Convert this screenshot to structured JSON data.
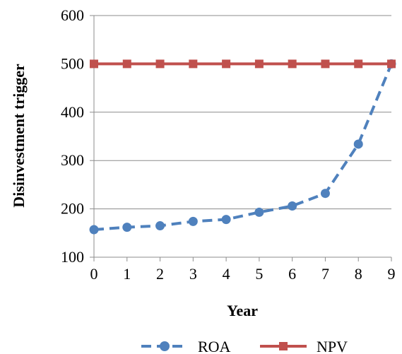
{
  "chart_data": {
    "type": "line",
    "title": "",
    "xlabel": "Year",
    "ylabel": "Disinvestment trigger",
    "x": [
      0,
      1,
      2,
      3,
      4,
      5,
      6,
      7,
      8,
      9
    ],
    "xticks": [
      "0",
      "1",
      "2",
      "3",
      "4",
      "5",
      "6",
      "7",
      "8",
      "9"
    ],
    "ylim": [
      100,
      600
    ],
    "yticks": [
      "100",
      "200",
      "300",
      "400",
      "500",
      "600"
    ],
    "grid": "horizontal",
    "legend_position": "bottom",
    "series": [
      {
        "name": "ROA",
        "values": [
          157,
          162,
          165,
          174,
          178,
          193,
          206,
          232,
          334,
          500
        ],
        "color": "#4F81BD",
        "line_style": "dashed",
        "marker": "circle"
      },
      {
        "name": "NPV",
        "values": [
          500,
          500,
          500,
          500,
          500,
          500,
          500,
          500,
          500,
          500
        ],
        "color": "#C0504D",
        "line_style": "solid",
        "marker": "square"
      }
    ]
  }
}
